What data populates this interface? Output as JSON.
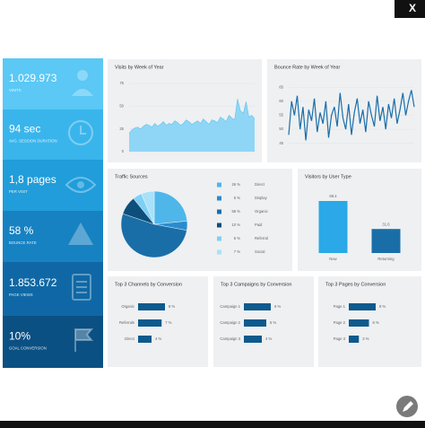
{
  "close_button": "X",
  "kpis": [
    {
      "value": "1.029.973",
      "label": "VISITS"
    },
    {
      "value": "94 sec",
      "label": "AVG. SESSION DURATION"
    },
    {
      "value": "1,8 pages",
      "label": "PER VISIT"
    },
    {
      "value": "58 %",
      "label": "BOUNCE RATE"
    },
    {
      "value": "1.853.672",
      "label": "PAGE VIEWS"
    },
    {
      "value": "10%",
      "label": "GOAL CONVERSION"
    }
  ],
  "chart_data": [
    {
      "type": "area",
      "title": "Visits by Week of Year",
      "color": "#8fd6f6",
      "values": [
        20,
        24,
        26,
        27,
        25,
        28,
        30,
        29,
        27,
        31,
        28,
        30,
        33,
        29,
        31,
        30,
        34,
        32,
        29,
        31,
        35,
        33,
        30,
        32,
        34,
        31,
        36,
        33,
        30,
        35,
        34,
        32,
        38,
        36,
        33,
        40,
        37,
        35,
        58,
        45,
        42,
        55,
        38,
        40,
        36
      ],
      "ylim": [
        0,
        80
      ],
      "yticks": [
        0,
        25,
        50,
        75
      ]
    },
    {
      "type": "line",
      "title": "Bounce Rate by Week of Year",
      "color": "#1a6ea8",
      "values": [
        48,
        60,
        55,
        62,
        50,
        58,
        46,
        57,
        53,
        61,
        49,
        56,
        52,
        60,
        47,
        55,
        58,
        51,
        63,
        54,
        50,
        59,
        48,
        56,
        61,
        52,
        57,
        49,
        60,
        55,
        51,
        62,
        53,
        58,
        50,
        59,
        54,
        61,
        52,
        57,
        63,
        55,
        60,
        64,
        58
      ],
      "ylim": [
        42,
        68
      ],
      "yticks": [
        45,
        50,
        55,
        60,
        65
      ]
    },
    {
      "type": "pie",
      "title": "Traffic Sources",
      "categories": [
        "Direct",
        "Display",
        "Organic",
        "Paid",
        "Referral",
        "Social"
      ],
      "values": [
        26,
        5,
        58,
        10,
        5,
        7
      ],
      "value_labels": [
        "26 %",
        "5 %",
        "58 %",
        "10 %",
        "5 %",
        "7 %"
      ],
      "colors": [
        "#4fb6ea",
        "#2a8cce",
        "#1a6ea8",
        "#0d4f7a",
        "#7fd0f5",
        "#a9e1f8"
      ]
    },
    {
      "type": "bar",
      "title": "Visitors by User Type",
      "color": "#2aa8e8",
      "categories": [
        "New",
        "Returning"
      ],
      "values": [
        68.4,
        31.6
      ],
      "colors": [
        "#2aa8e8",
        "#1a6ea8"
      ]
    },
    {
      "type": "hbar",
      "title": "Top 3 Channels by Conversion",
      "color": "#0f5a8c",
      "categories": [
        "Organic",
        "Referrals",
        "Direct"
      ],
      "values": [
        8,
        7,
        4
      ],
      "value_labels": [
        "8 %",
        "7 %",
        "4 %"
      ]
    },
    {
      "type": "hbar",
      "title": "Top 3 Campaigns by Conversion",
      "color": "#0f5a8c",
      "categories": [
        "Campaign 1",
        "Campaign 2",
        "Campaign 3"
      ],
      "values": [
        6,
        5,
        4
      ],
      "value_labels": [
        "6 %",
        "5 %",
        "4 %"
      ]
    },
    {
      "type": "hbar",
      "title": "Top 3 Pages by Conversion",
      "color": "#0f5a8c",
      "categories": [
        "Page 1",
        "Page 2",
        "Page 3"
      ],
      "values": [
        8,
        6,
        3
      ],
      "value_labels": [
        "8 %",
        "6 %",
        "3 %"
      ]
    }
  ]
}
